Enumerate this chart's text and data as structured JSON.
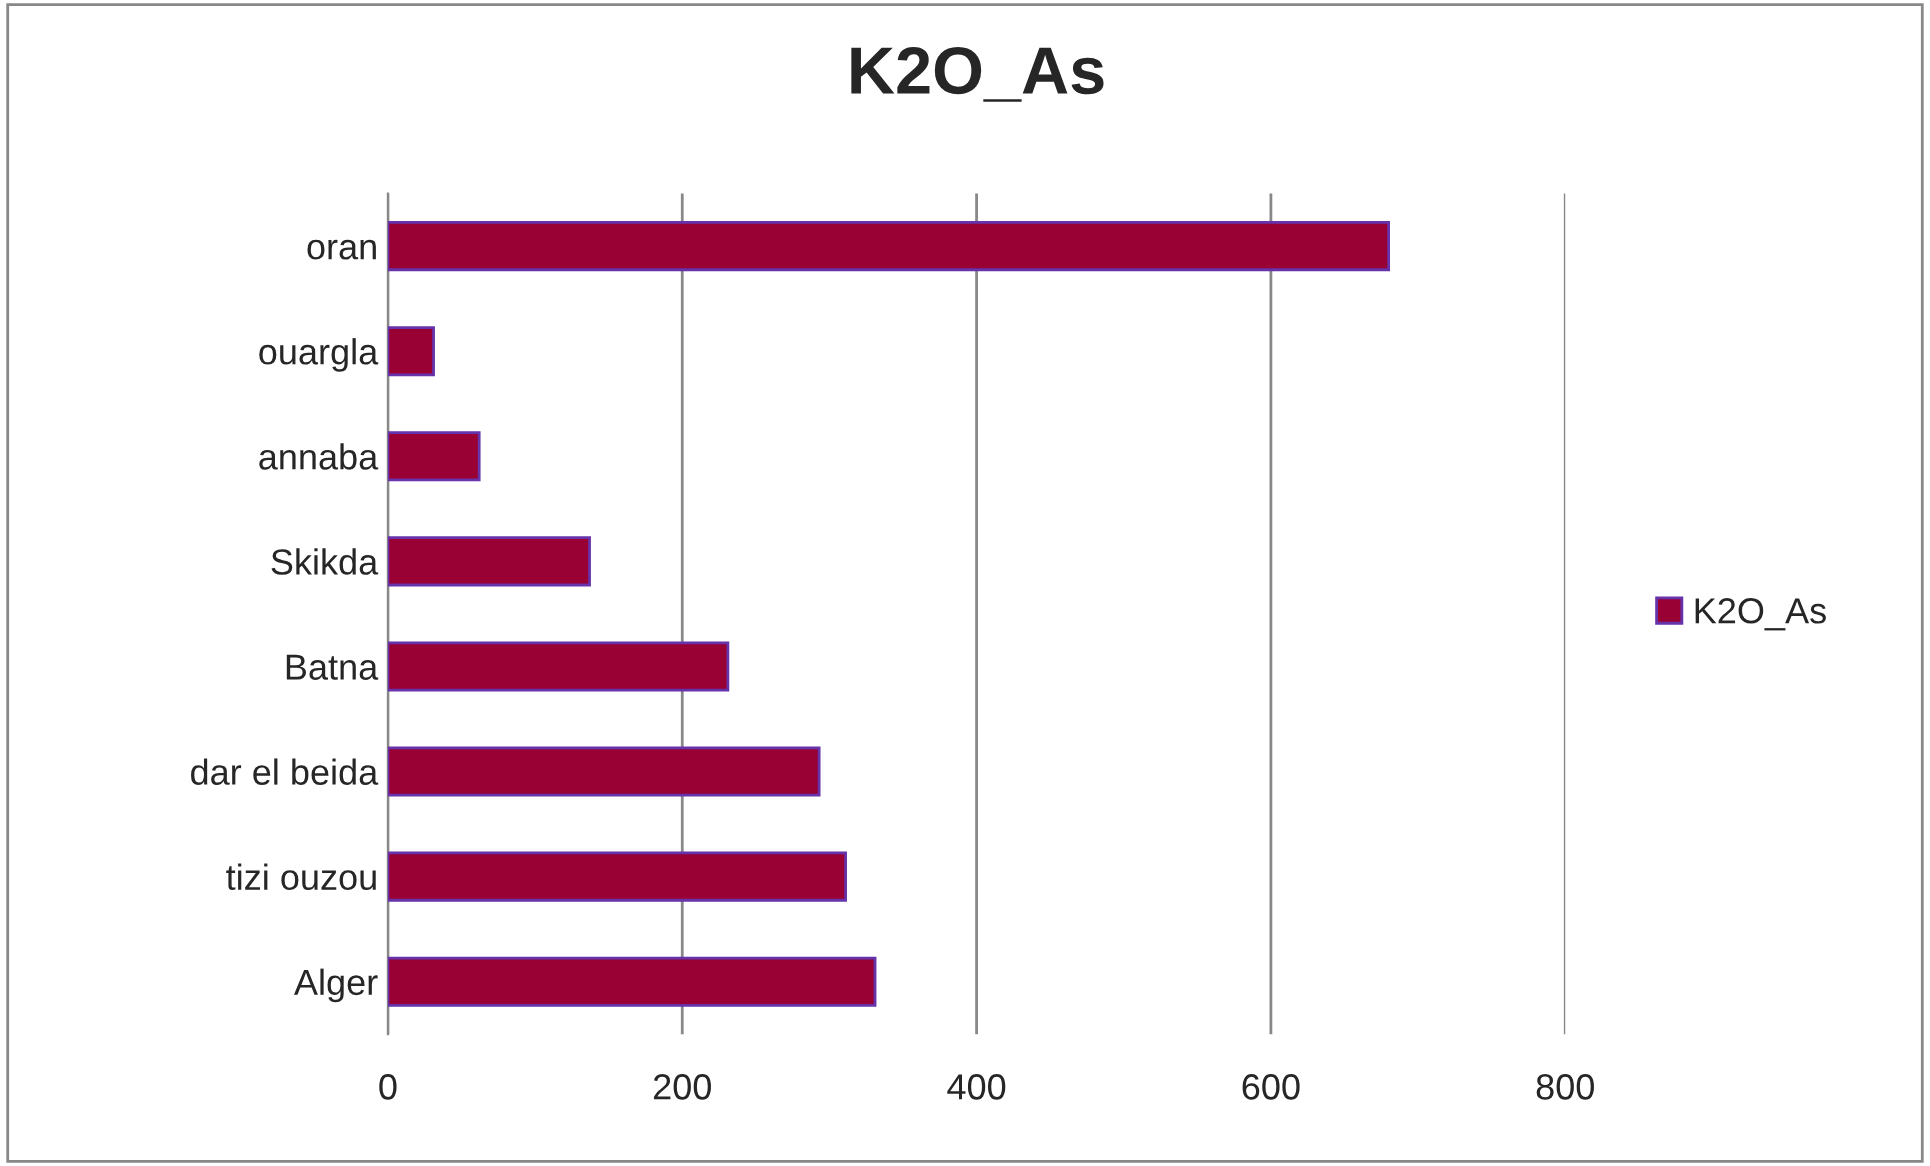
{
  "chart_data": {
    "type": "bar",
    "title": "K2O_As",
    "orientation": "horizontal",
    "categories": [
      "oran",
      "ouargla",
      "annaba",
      "Skikda",
      "Batna",
      "dar el beida",
      "tizi ouzou",
      "Alger"
    ],
    "series": [
      {
        "name": "K2O_As",
        "color": "#990033",
        "values": [
          680,
          31,
          62,
          137,
          231,
          293,
          311,
          331
        ]
      }
    ],
    "xlim": [
      0,
      800
    ],
    "xticks": [
      0,
      200,
      400,
      600,
      800
    ],
    "grid": "x",
    "legend": "right"
  }
}
